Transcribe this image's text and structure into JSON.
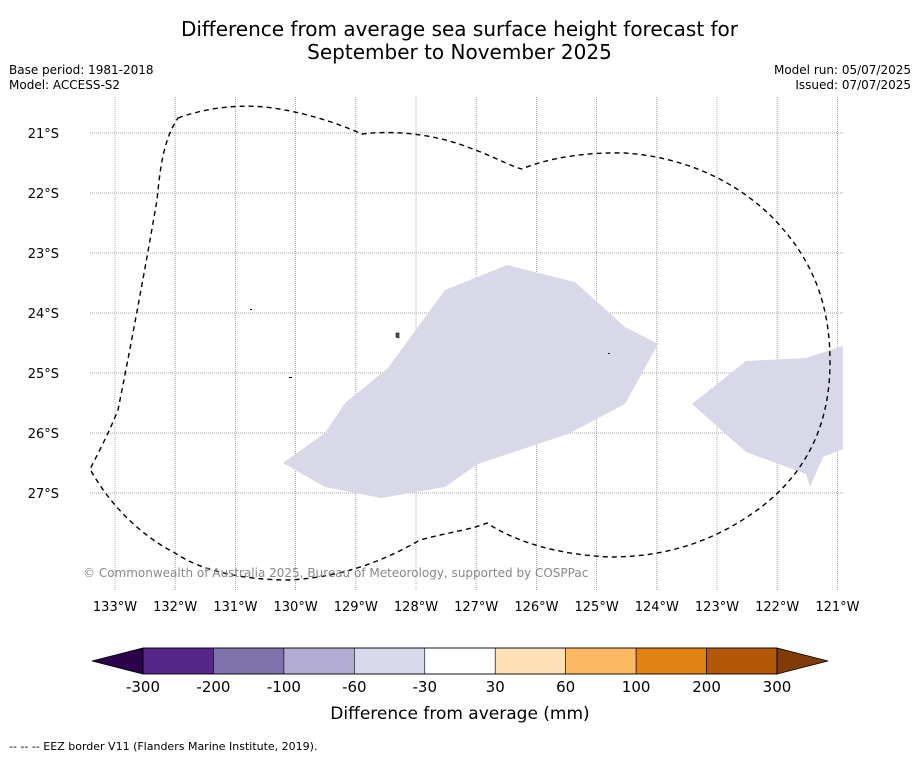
{
  "title_line1": "Difference from average sea surface height forecast for",
  "title_line2": "September to November 2025",
  "meta_left": {
    "base_period": "Base period: 1981-2018",
    "model": "Model: ACCESS-S2"
  },
  "meta_right": {
    "model_run": "Model run: 05/07/2025",
    "issued": "Issued: 07/07/2025"
  },
  "map": {
    "latitude_labels": [
      "21°S",
      "22°S",
      "23°S",
      "24°S",
      "25°S",
      "26°S",
      "27°S"
    ],
    "longitude_labels": [
      "133°W",
      "132°W",
      "131°W",
      "130°W",
      "129°W",
      "128°W",
      "127°W",
      "126°W",
      "125°W",
      "124°W",
      "123°W",
      "122°W",
      "121°W"
    ],
    "copyright": "© Commonwealth of Australia 2025, Bureau of Meteorology, supported by COSPPac",
    "anomaly_fill_color": "#d8d8e9",
    "eez_line_color": "#000000"
  },
  "colorbar": {
    "tick_labels": [
      "-300",
      "-200",
      "-100",
      "-60",
      "-30",
      "30",
      "60",
      "100",
      "200",
      "300"
    ],
    "low_extend_color": "#2d004b",
    "high_extend_color": "#7f3b08",
    "colors": [
      "#542788",
      "#8073ac",
      "#b2abd2",
      "#d8daeb",
      "#ffffff",
      "#fee0b6",
      "#fdb863",
      "#e08214",
      "#b35806"
    ],
    "label": "Difference from average (mm)"
  },
  "footnote": "--  --  -- EEZ border V11 (Flanders Marine Institute, 2019)."
}
